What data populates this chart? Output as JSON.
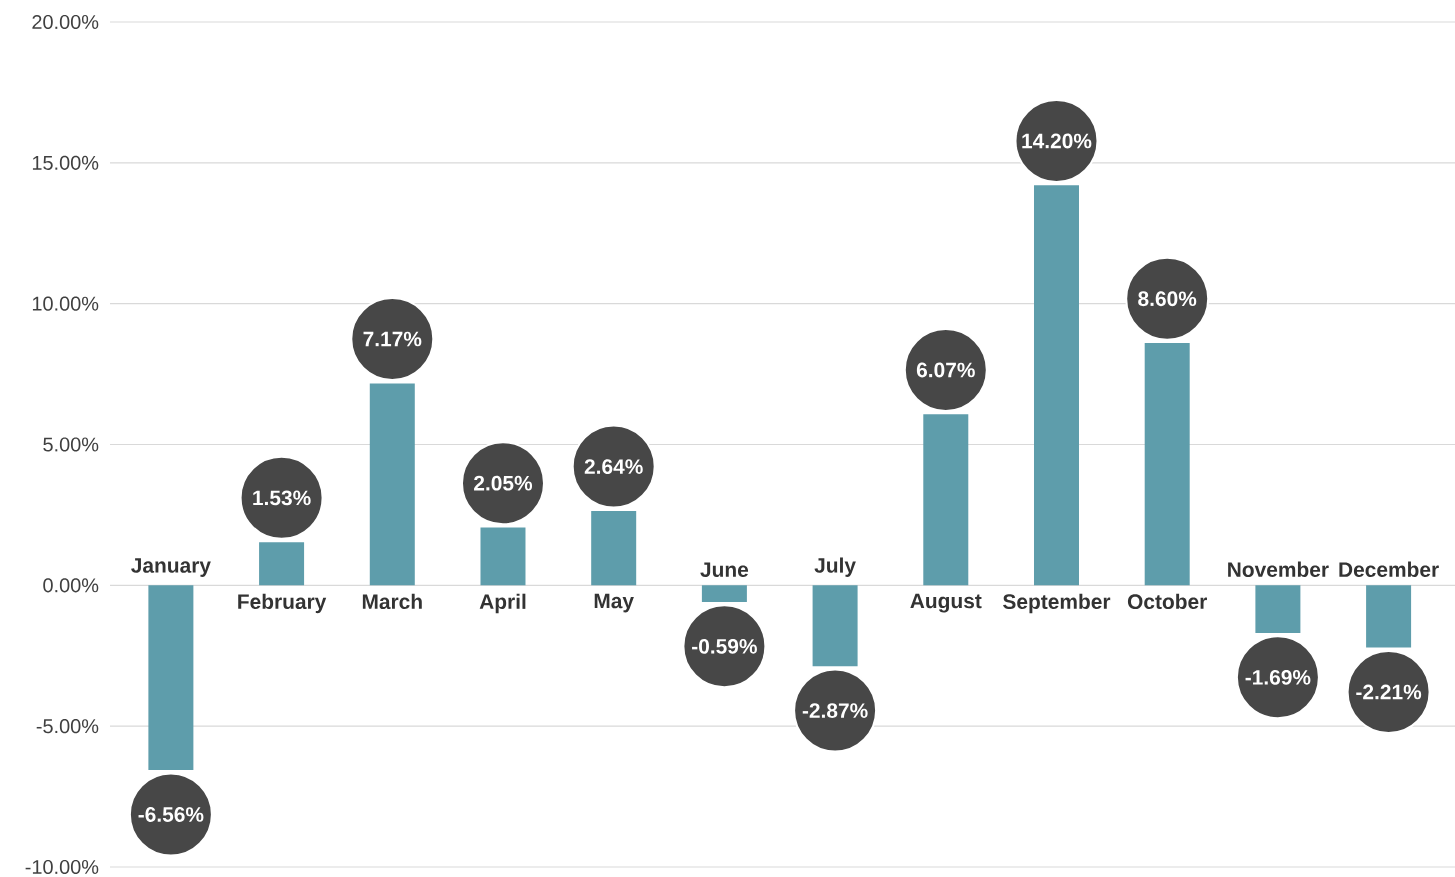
{
  "chart_data": {
    "type": "bar",
    "categories": [
      "January",
      "February",
      "March",
      "April",
      "May",
      "June",
      "July",
      "August",
      "September",
      "October",
      "November",
      "December"
    ],
    "values": [
      -6.56,
      1.53,
      7.17,
      2.05,
      2.64,
      -0.59,
      -2.87,
      6.07,
      14.2,
      8.6,
      -1.69,
      -2.21
    ],
    "value_labels": [
      "-6.56%",
      "1.53%",
      "7.17%",
      "2.05%",
      "2.64%",
      "-0.59%",
      "-2.87%",
      "6.07%",
      "14.20%",
      "8.60%",
      "-1.69%",
      "-2.21%"
    ],
    "color": "#5e9dab",
    "ylim": [
      -10,
      20
    ],
    "yticks": [
      {
        "value": -10,
        "label": "-10.00%"
      },
      {
        "value": -5,
        "label": "-5.00%"
      },
      {
        "value": 0,
        "label": "0.00%"
      },
      {
        "value": 5,
        "label": "5.00%"
      },
      {
        "value": 10,
        "label": "10.00%"
      },
      {
        "value": 15,
        "label": "15.00%"
      },
      {
        "value": 20,
        "label": "20.00%"
      }
    ],
    "grid": "y"
  }
}
